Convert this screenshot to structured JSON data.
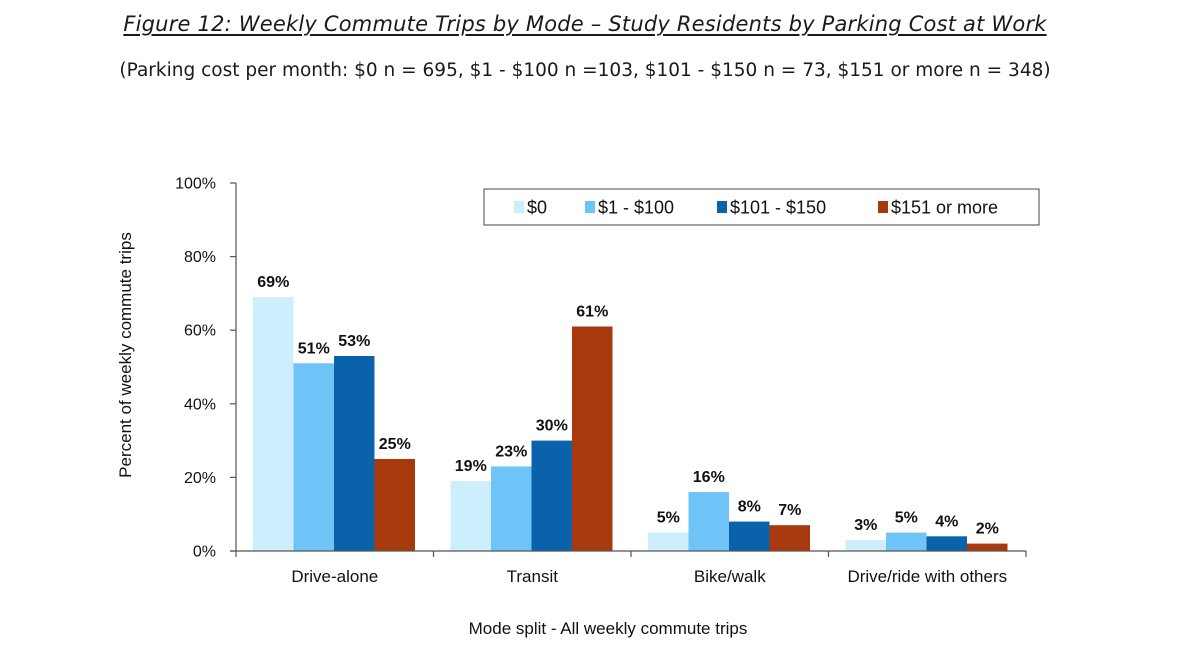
{
  "figure": {
    "title": "Figure 12: Weekly Commute Trips by Mode – Study Residents by Parking Cost at Work",
    "subtitle": "(Parking cost per month: $0 n = 695, $1 - $100 n =103, $101 - $150 n = 73, $151 or more n = 348)"
  },
  "chart_data": {
    "type": "bar",
    "xlabel": "Mode split - All weekly commute trips",
    "ylabel": "Percent of weekly commute trips",
    "ylim": [
      0,
      100
    ],
    "yticks": [
      0,
      20,
      40,
      60,
      80,
      100
    ],
    "ytick_labels": [
      "0%",
      "20%",
      "40%",
      "60%",
      "80%",
      "100%"
    ],
    "grid": false,
    "legend_position": "top-right",
    "categories": [
      "Drive-alone",
      "Transit",
      "Bike/walk",
      "Drive/ride with others"
    ],
    "series": [
      {
        "name": "$0",
        "color": "#cdeefc",
        "values": [
          69,
          19,
          5,
          3
        ],
        "labels": [
          "69%",
          "19%",
          "5%",
          "3%"
        ]
      },
      {
        "name": "$1 - $100",
        "color": "#6ec3f7",
        "values": [
          51,
          23,
          16,
          5
        ],
        "labels": [
          "51%",
          "23%",
          "16%",
          "5%"
        ]
      },
      {
        "name": "$101 - $150",
        "color": "#0a63aa",
        "values": [
          53,
          30,
          8,
          4
        ],
        "labels": [
          "53%",
          "30%",
          "8%",
          "4%"
        ]
      },
      {
        "name": "$151 or more",
        "color": "#a8390c",
        "values": [
          25,
          61,
          7,
          2
        ],
        "labels": [
          "25%",
          "61%",
          "7%",
          "2%"
        ]
      }
    ]
  }
}
